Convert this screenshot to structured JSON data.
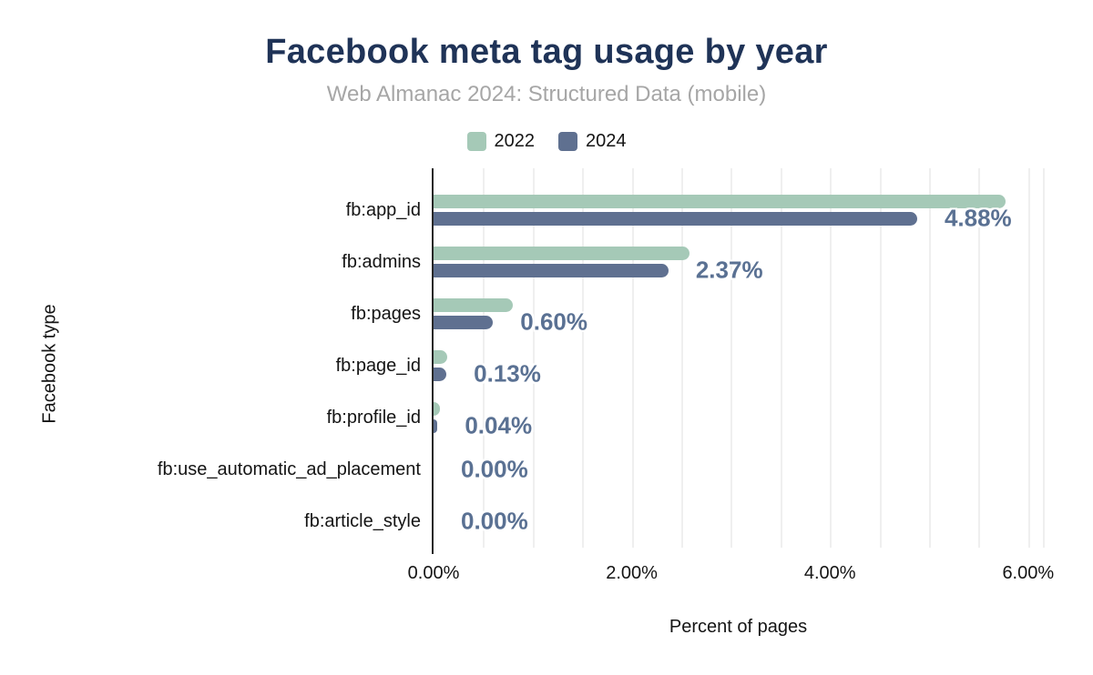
{
  "title": "Facebook meta tag usage by year",
  "subtitle": "Web Almanac 2024: Structured Data (mobile)",
  "legend": [
    {
      "label": "2022",
      "color": "#a5c9b7"
    },
    {
      "label": "2024",
      "color": "#5f7090"
    }
  ],
  "colors": {
    "title": "#1f3357",
    "subtitle": "#a6a6a6",
    "series_2022": "#a5c9b7",
    "series_2024": "#5f7090",
    "data_label": "#5a7193",
    "gridline": "#efefef",
    "axis": "#262626"
  },
  "chart_data": {
    "type": "bar",
    "orientation": "horizontal",
    "title": "Facebook meta tag usage by year",
    "subtitle": "Web Almanac 2024: Structured Data (mobile)",
    "categories": [
      "fb:app_id",
      "fb:admins",
      "fb:pages",
      "fb:page_id",
      "fb:profile_id",
      "fb:use_automatic_ad_placement",
      "fb:article_style"
    ],
    "series": [
      {
        "name": "2022",
        "values": [
          5.77,
          2.58,
          0.8,
          0.14,
          0.06,
          0.0,
          0.0
        ]
      },
      {
        "name": "2024",
        "values": [
          4.88,
          2.37,
          0.6,
          0.13,
          0.04,
          0.0,
          0.0
        ]
      }
    ],
    "data_labels": [
      "4.88%",
      "2.37%",
      "0.60%",
      "0.13%",
      "0.04%",
      "0.00%",
      "0.00%"
    ],
    "data_labels_series": "2024",
    "xlabel": "Percent of pages",
    "ylabel": "Facebook type",
    "xlim": [
      0,
      6.15
    ],
    "x_ticks": [
      "0.00%",
      "2.00%",
      "4.00%",
      "6.00%"
    ],
    "x_tick_values": [
      0,
      2,
      4,
      6
    ],
    "minor_gridline_step": 0.5,
    "grid": true,
    "legend_position": "top"
  }
}
